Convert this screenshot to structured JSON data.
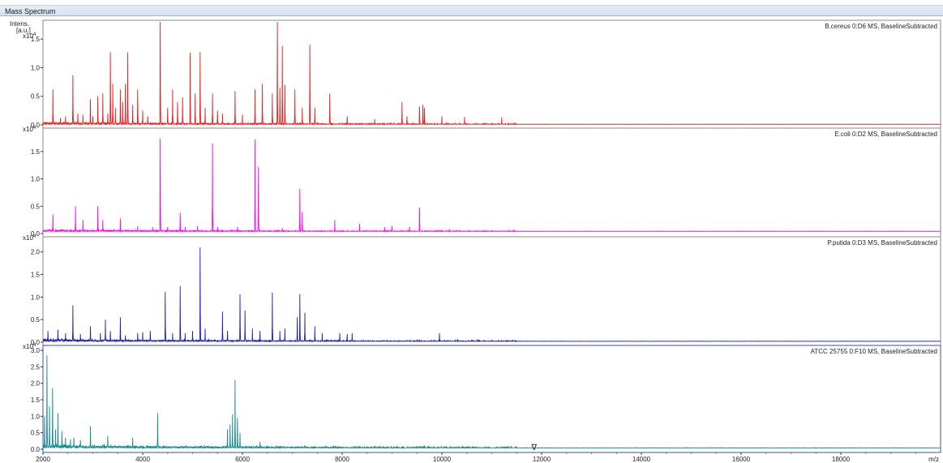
{
  "window": {
    "title": "Mass Spectrum"
  },
  "chart_data": {
    "type": "line",
    "x": {
      "min": 2000,
      "max": 20000,
      "ticks": [
        2000,
        4000,
        6000,
        8000,
        10000,
        12000,
        14000,
        16000,
        18000
      ],
      "label": "m/z"
    },
    "y_label": [
      "Intens.",
      "[a.u.]"
    ],
    "y_exponent": "x10",
    "y_exponent_power": "4",
    "marker": {
      "label": "∇",
      "x": 11850
    },
    "series": [
      {
        "name": "B.cereus 0:D6 MS, BaselineSubtracted",
        "color": "#ee1c1c",
        "ylim": [
          0,
          1.8
        ],
        "yticks": [
          "0.0",
          "0.5",
          "1.0",
          "1.5"
        ],
        "baseline": 0.01,
        "noise": 0.04,
        "peaks": [
          [
            2200,
            0.62
          ],
          [
            2350,
            0.12
          ],
          [
            2450,
            0.15
          ],
          [
            2600,
            0.87
          ],
          [
            2700,
            0.2
          ],
          [
            2800,
            0.18
          ],
          [
            2950,
            0.45
          ],
          [
            3000,
            0.15
          ],
          [
            3100,
            0.5
          ],
          [
            3200,
            0.55
          ],
          [
            3300,
            0.2
          ],
          [
            3350,
            1.27
          ],
          [
            3400,
            0.72
          ],
          [
            3450,
            0.3
          ],
          [
            3550,
            0.62
          ],
          [
            3600,
            0.4
          ],
          [
            3650,
            0.72
          ],
          [
            3700,
            1.27
          ],
          [
            3800,
            0.35
          ],
          [
            3900,
            0.62
          ],
          [
            4000,
            0.25
          ],
          [
            4100,
            0.15
          ],
          [
            4350,
            1.97
          ],
          [
            4500,
            0.3
          ],
          [
            4600,
            0.62
          ],
          [
            4700,
            0.4
          ],
          [
            4800,
            0.48
          ],
          [
            4950,
            1.26
          ],
          [
            5050,
            0.55
          ],
          [
            5150,
            1.27
          ],
          [
            5250,
            0.3
          ],
          [
            5400,
            0.55
          ],
          [
            5500,
            0.25
          ],
          [
            5600,
            0.2
          ],
          [
            5850,
            0.59
          ],
          [
            6000,
            0.18
          ],
          [
            6250,
            0.62
          ],
          [
            6400,
            0.72
          ],
          [
            6600,
            0.55
          ],
          [
            6700,
            1.8
          ],
          [
            6750,
            0.65
          ],
          [
            6800,
            1.38
          ],
          [
            6850,
            0.7
          ],
          [
            7050,
            0.62
          ],
          [
            7200,
            0.3
          ],
          [
            7350,
            1.4
          ],
          [
            7450,
            0.3
          ],
          [
            7750,
            0.55
          ],
          [
            8100,
            0.15
          ],
          [
            8650,
            0.1
          ],
          [
            9200,
            0.4
          ],
          [
            9300,
            0.15
          ],
          [
            9550,
            0.32
          ],
          [
            9620,
            0.35
          ],
          [
            9650,
            0.3
          ],
          [
            10000,
            0.15
          ],
          [
            10450,
            0.14
          ],
          [
            11200,
            0.13
          ]
        ]
      },
      {
        "name": "E.coli 0:D2 MS, BaselineSubtracted",
        "color": "#ff00ff",
        "ylim": [
          0,
          1.9
        ],
        "yticks": [
          "0.0",
          "0.5",
          "1.0",
          "1.5"
        ],
        "baseline": 0.04,
        "noise": 0.03,
        "peaks": [
          [
            2200,
            0.35
          ],
          [
            2650,
            0.5
          ],
          [
            2800,
            0.25
          ],
          [
            3100,
            0.5
          ],
          [
            3200,
            0.25
          ],
          [
            3550,
            0.28
          ],
          [
            3900,
            0.13
          ],
          [
            4200,
            0.12
          ],
          [
            4350,
            1.74
          ],
          [
            4500,
            0.12
          ],
          [
            4750,
            0.38
          ],
          [
            4850,
            0.12
          ],
          [
            5100,
            0.14
          ],
          [
            5400,
            1.65
          ],
          [
            5500,
            0.12
          ],
          [
            5900,
            0.12
          ],
          [
            6250,
            1.72
          ],
          [
            6320,
            1.22
          ],
          [
            6800,
            0.1
          ],
          [
            7150,
            0.82
          ],
          [
            7200,
            0.4
          ],
          [
            7850,
            0.25
          ],
          [
            8350,
            0.18
          ],
          [
            8850,
            0.12
          ],
          [
            9000,
            0.14
          ],
          [
            9350,
            0.12
          ],
          [
            9550,
            0.48
          ],
          [
            10150,
            0.08
          ],
          [
            10300,
            0.06
          ]
        ]
      },
      {
        "name": "P.putida 0:D3 MS, BaselineSubtracted",
        "color": "#1c1ccc",
        "ylim": [
          0,
          2.3
        ],
        "yticks": [
          "0.0",
          "0.5",
          "1.0",
          "1.5",
          "2.0"
        ],
        "baseline": 0.02,
        "noise": 0.05,
        "peaks": [
          [
            2100,
            0.25
          ],
          [
            2300,
            0.28
          ],
          [
            2450,
            0.2
          ],
          [
            2600,
            0.82
          ],
          [
            2750,
            0.18
          ],
          [
            2950,
            0.35
          ],
          [
            3150,
            0.2
          ],
          [
            3250,
            0.5
          ],
          [
            3350,
            0.25
          ],
          [
            3550,
            0.55
          ],
          [
            3650,
            0.15
          ],
          [
            3900,
            0.2
          ],
          [
            4000,
            0.22
          ],
          [
            4150,
            0.25
          ],
          [
            4450,
            1.12
          ],
          [
            4600,
            0.2
          ],
          [
            4750,
            1.24
          ],
          [
            4850,
            0.2
          ],
          [
            5000,
            0.25
          ],
          [
            5150,
            2.1
          ],
          [
            5250,
            0.3
          ],
          [
            5600,
            0.68
          ],
          [
            5700,
            0.25
          ],
          [
            5950,
            1.06
          ],
          [
            6050,
            0.7
          ],
          [
            6200,
            0.3
          ],
          [
            6350,
            0.25
          ],
          [
            6600,
            1.1
          ],
          [
            6750,
            0.25
          ],
          [
            6850,
            0.3
          ],
          [
            7100,
            0.55
          ],
          [
            7150,
            1.06
          ],
          [
            7250,
            0.65
          ],
          [
            7450,
            0.35
          ],
          [
            7600,
            0.2
          ],
          [
            7950,
            0.2
          ],
          [
            8100,
            0.18
          ],
          [
            8200,
            0.2
          ],
          [
            9500,
            0.06
          ],
          [
            9950,
            0.2
          ]
        ]
      },
      {
        "name": "ATCC 25755 0:F10 MS, BaselineSubtracted",
        "color": "#138c8c",
        "ylim": [
          0,
          3.1
        ],
        "yticks": [
          "0.0",
          "0.5",
          "1.0",
          "1.5",
          "2.0",
          "2.5",
          "3.0"
        ],
        "baseline": 0.04,
        "noise": 0.1,
        "peaks": [
          [
            2030,
            1.0
          ],
          [
            2080,
            2.85
          ],
          [
            2130,
            1.3
          ],
          [
            2190,
            1.85
          ],
          [
            2250,
            0.6
          ],
          [
            2300,
            1.1
          ],
          [
            2380,
            0.55
          ],
          [
            2450,
            0.35
          ],
          [
            2550,
            0.3
          ],
          [
            2620,
            0.35
          ],
          [
            2750,
            0.28
          ],
          [
            2950,
            0.7
          ],
          [
            3300,
            0.4
          ],
          [
            3800,
            0.35
          ],
          [
            4300,
            1.1
          ],
          [
            5700,
            0.6
          ],
          [
            5750,
            0.75
          ],
          [
            5800,
            1.05
          ],
          [
            5850,
            2.1
          ],
          [
            5900,
            0.95
          ],
          [
            5950,
            0.5
          ],
          [
            6350,
            0.22
          ],
          [
            7250,
            0.12
          ],
          [
            7600,
            0.06
          ]
        ]
      }
    ]
  }
}
